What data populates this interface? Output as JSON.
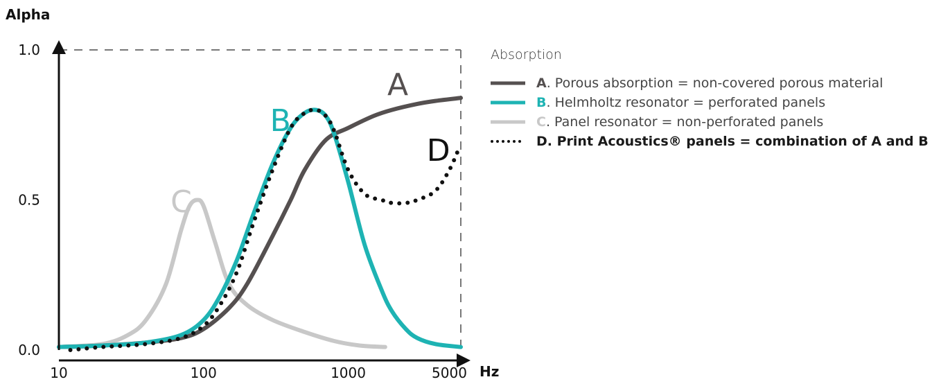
{
  "chart_data": {
    "type": "line",
    "ylabel": "Alpha",
    "xlabel": "Hz",
    "x_scale": "log",
    "xlim": [
      10,
      6000
    ],
    "ylim": [
      0.0,
      1.0
    ],
    "x_ticks": [
      "10",
      "100",
      "1000",
      "5000"
    ],
    "x_tick_values": [
      10,
      100,
      1000,
      5000
    ],
    "y_ticks": [
      "0.0",
      "0.5",
      "1.0"
    ],
    "y_tick_values": [
      0.0,
      0.5,
      1.0
    ],
    "legend_title": "Absorption",
    "legend_position": "right",
    "series": [
      {
        "name": "A",
        "label": "A",
        "description": ". Porous absorption = non-covered porous material",
        "color": "#555050",
        "style": "solid",
        "x": [
          10,
          20,
          40,
          70,
          100,
          150,
          200,
          300,
          400,
          500,
          700,
          1000,
          1500,
          2000,
          3000,
          4000,
          6000
        ],
        "y": [
          0.01,
          0.015,
          0.025,
          0.04,
          0.07,
          0.14,
          0.22,
          0.38,
          0.5,
          0.6,
          0.7,
          0.74,
          0.78,
          0.8,
          0.82,
          0.83,
          0.84
        ]
      },
      {
        "name": "B",
        "label": "B",
        "description": ". Helmholtz resonator = perforated panels",
        "color": "#1eb3b3",
        "style": "solid",
        "x": [
          10,
          20,
          40,
          70,
          100,
          130,
          170,
          220,
          300,
          400,
          500,
          600,
          700,
          800,
          1000,
          1300,
          1700,
          2000,
          2500,
          3000,
          4000,
          6000
        ],
        "y": [
          0.01,
          0.015,
          0.025,
          0.05,
          0.1,
          0.18,
          0.3,
          0.45,
          0.62,
          0.74,
          0.79,
          0.8,
          0.78,
          0.72,
          0.56,
          0.35,
          0.2,
          0.13,
          0.07,
          0.04,
          0.02,
          0.01
        ]
      },
      {
        "name": "C",
        "label": "C",
        "description": ". Panel resonator = non-perforated panels",
        "color": "#c8c8c8",
        "style": "solid",
        "x": [
          10,
          20,
          30,
          40,
          55,
          70,
          80,
          90,
          100,
          120,
          150,
          200,
          300,
          500,
          800,
          1200,
          1800
        ],
        "y": [
          0.01,
          0.02,
          0.05,
          0.1,
          0.22,
          0.4,
          0.48,
          0.5,
          0.48,
          0.36,
          0.22,
          0.15,
          0.1,
          0.06,
          0.03,
          0.015,
          0.01
        ]
      },
      {
        "name": "D",
        "label": "D",
        "description": ". Print Acoustics® panels = combination of A and B",
        "color": "#111111",
        "style": "dotted",
        "x": [
          12,
          20,
          40,
          70,
          100,
          130,
          170,
          220,
          300,
          400,
          500,
          600,
          700,
          800,
          1000,
          1300,
          1700,
          2000,
          2500,
          3000,
          4000,
          5000,
          5800
        ],
        "y": [
          0.0,
          0.01,
          0.02,
          0.04,
          0.08,
          0.15,
          0.26,
          0.42,
          0.6,
          0.74,
          0.79,
          0.8,
          0.78,
          0.73,
          0.6,
          0.52,
          0.5,
          0.49,
          0.49,
          0.5,
          0.53,
          0.6,
          0.67
        ]
      }
    ]
  }
}
